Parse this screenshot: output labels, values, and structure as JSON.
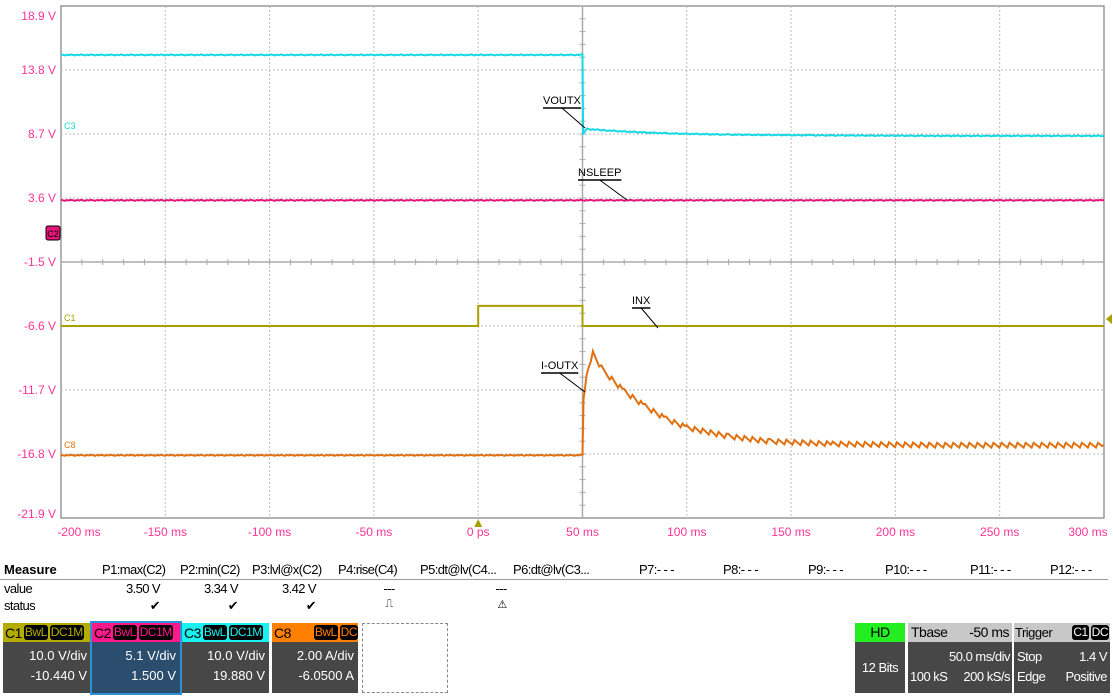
{
  "chart_data": {
    "type": "line",
    "title": "",
    "xlabel": "",
    "ylabel": "",
    "xlim": [
      -200,
      300
    ],
    "ylim": [
      -21.9,
      18.9
    ],
    "grid": true,
    "x_ticks": [
      "-200 ms",
      "-150 ms",
      "-100 ms",
      "-50 ms",
      "0 ps",
      "50 ms",
      "100 ms",
      "150 ms",
      "200 ms",
      "250 ms",
      "300 ms"
    ],
    "y_ticks": [
      "18.9 V",
      "13.8 V",
      "8.7 V",
      "3.6 V",
      "-1.5 V",
      "-6.6 V",
      "-11.7 V",
      "-16.8 V",
      "-21.9 V"
    ],
    "series": [
      {
        "name": "VOUTX",
        "channel": "C3",
        "color": "#16d9e3",
        "points": [
          [
            -200,
            15.0
          ],
          [
            50,
            15.0
          ],
          [
            50.3,
            8.7
          ],
          [
            52,
            9.1
          ],
          [
            60,
            9.0
          ],
          [
            70,
            8.9
          ],
          [
            90,
            8.75
          ],
          [
            120,
            8.65
          ],
          [
            160,
            8.6
          ],
          [
            220,
            8.55
          ],
          [
            300,
            8.55
          ]
        ]
      },
      {
        "name": "NSLEEP",
        "channel": "C2",
        "color": "#e5157a",
        "points": [
          [
            -200,
            3.42
          ],
          [
            300,
            3.42
          ]
        ]
      },
      {
        "name": "INX",
        "channel": "C1",
        "color": "#a8a000",
        "points": [
          [
            -200,
            -6.6
          ],
          [
            0,
            -6.6
          ],
          [
            0,
            -5.0
          ],
          [
            50,
            -5.0
          ],
          [
            50,
            -6.6
          ],
          [
            300,
            -6.6
          ]
        ]
      },
      {
        "name": "I-OUTX",
        "channel": "C8",
        "color": "#e07010",
        "points": [
          [
            -200,
            -16.9
          ],
          [
            50,
            -16.9
          ],
          [
            50.5,
            -12.5
          ],
          [
            52,
            -10.5
          ],
          [
            55,
            -8.8
          ],
          [
            60,
            -10.2
          ],
          [
            70,
            -11.8
          ],
          [
            80,
            -13.0
          ],
          [
            90,
            -14.0
          ],
          [
            100,
            -14.7
          ],
          [
            120,
            -15.4
          ],
          [
            140,
            -15.8
          ],
          [
            170,
            -16.0
          ],
          [
            220,
            -16.1
          ],
          [
            300,
            -16.1
          ]
        ]
      }
    ],
    "channel_markers": [
      "C3",
      "C2",
      "C1",
      "C8"
    ]
  },
  "measure": {
    "title": "Measure",
    "row_value": "value",
    "row_status": "status",
    "params": [
      {
        "label": "P1:max(C2)",
        "value": "3.50 V",
        "status": "✔"
      },
      {
        "label": "P2:min(C2)",
        "value": "3.34 V",
        "status": "✔"
      },
      {
        "label": "P3:lvl@x(C2)",
        "value": "3.42 V",
        "status": "✔"
      },
      {
        "label": "P4:rise(C4)",
        "value": "---",
        "status": "⎍"
      },
      {
        "label": "P5:dt@lv(C4...",
        "value": "",
        "status": ""
      },
      {
        "label": "P6:dt@lv(C3...",
        "value": "---",
        "status": "⚠"
      },
      {
        "label": "P7:- - -"
      },
      {
        "label": "P8:- - -"
      },
      {
        "label": "P9:- - -"
      },
      {
        "label": "P10:- - -"
      },
      {
        "label": "P11:- - -"
      },
      {
        "label": "P12:- - -"
      }
    ]
  },
  "channels": [
    {
      "name": "C1",
      "bw": "BwL",
      "coupling": "DC1M",
      "scale": "10.0 V/div",
      "offset": "-10.440 V",
      "color": "#b5ac00"
    },
    {
      "name": "C2",
      "bw": "BwL",
      "coupling": "DC1M",
      "scale": "5.1 V/div",
      "offset": "1.500 V",
      "color": "#ff1a8c"
    },
    {
      "name": "C3",
      "bw": "BwL",
      "coupling": "DC1M",
      "scale": "10.0 V/div",
      "offset": "19.880 V",
      "color": "#19f0f0"
    },
    {
      "name": "C8",
      "bw": "BwL",
      "coupling": "DC",
      "scale": "2.00 A/div",
      "offset": "-6.0500 A",
      "color": "#ff7f00"
    }
  ],
  "acquisition": {
    "mode": "HD",
    "bits": "12 Bits",
    "mode_color": "#22ee22"
  },
  "timebase": {
    "label": "Tbase",
    "delay": "-50 ms",
    "scale": "50.0 ms/div",
    "samples": "100 kS",
    "rate": "200 kS/s"
  },
  "trigger": {
    "label": "Trigger",
    "source": "C1",
    "coupling": "DC",
    "state": "Stop",
    "level": "1.4 V",
    "type": "Edge",
    "slope": "Positive"
  }
}
